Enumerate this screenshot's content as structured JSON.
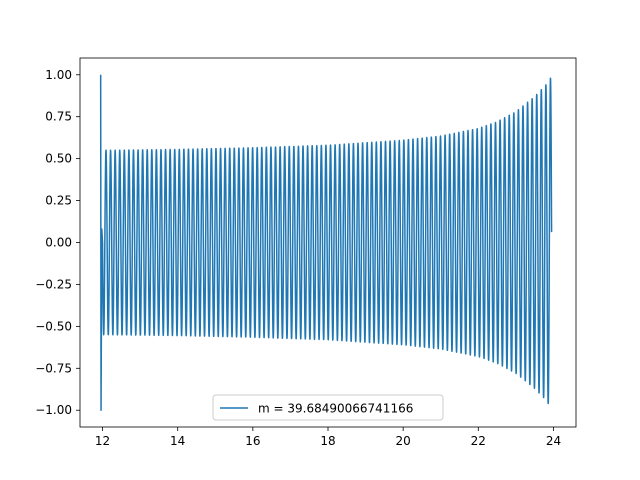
{
  "chart_data": {
    "type": "line",
    "title": "",
    "xlabel": "",
    "ylabel": "",
    "xlim": [
      11.4,
      24.6
    ],
    "ylim": [
      -1.1,
      1.1
    ],
    "xticks": [
      12,
      14,
      16,
      18,
      20,
      22,
      24
    ],
    "yticks": [
      -1.0,
      -0.75,
      -0.5,
      -0.25,
      0.0,
      0.25,
      0.5,
      0.75,
      1.0
    ],
    "xtick_labels": [
      "12",
      "14",
      "16",
      "18",
      "20",
      "22",
      "24"
    ],
    "ytick_labels": [
      "−1.00",
      "−0.75",
      "−0.50",
      "−0.25",
      "0.00",
      "0.25",
      "0.50",
      "0.75",
      "1.00"
    ],
    "grid": false,
    "legend_position": "lower center",
    "series": [
      {
        "name": "m = 39.68490066741166",
        "color": "#1f77b4",
        "description_points": {
          "x": [
            11.95,
            11.95,
            12.0,
            12.05,
            12.1,
            12.2,
            14,
            16,
            18,
            20,
            21,
            22,
            22.5,
            23,
            23.5,
            23.8,
            23.95
          ],
          "y_env": [
            1.0,
            -1.0,
            0.55,
            0.55,
            0.55,
            0.55,
            0.555,
            0.565,
            0.58,
            0.61,
            0.635,
            0.68,
            0.72,
            0.78,
            0.87,
            0.94,
            0.99
          ]
        },
        "x_start": 11.95,
        "x_end": 23.95,
        "cycles_per_unit": 8.2
      }
    ]
  }
}
